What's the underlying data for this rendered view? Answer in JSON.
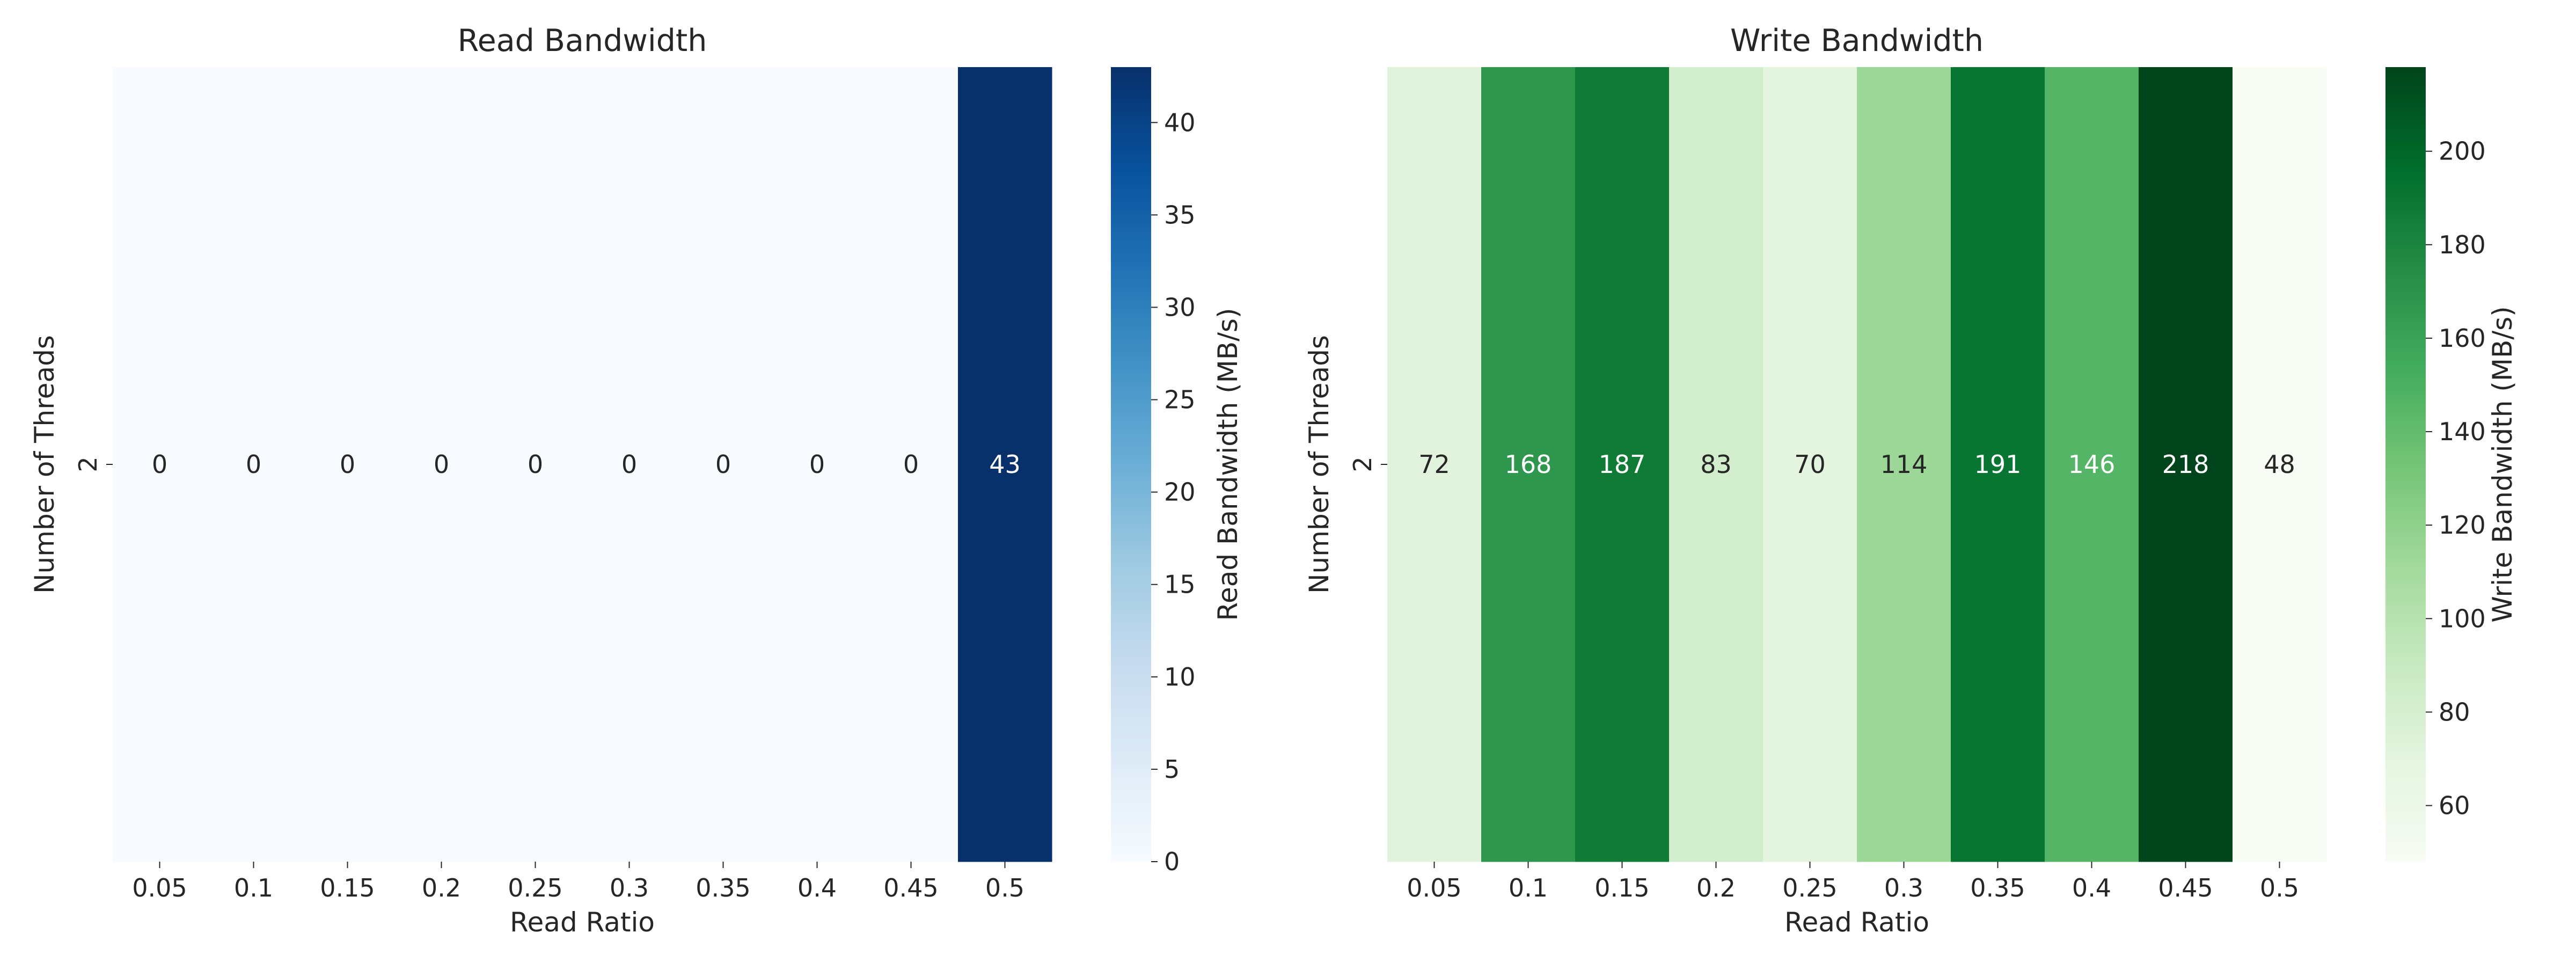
{
  "chart_data": [
    {
      "type": "heatmap",
      "title": "Read Bandwidth",
      "xlabel": "Read Ratio",
      "ylabel": "Number of Threads",
      "x_categories": [
        "0.05",
        "0.1",
        "0.15",
        "0.2",
        "0.25",
        "0.3",
        "0.35",
        "0.4",
        "0.45",
        "0.5"
      ],
      "y_categories": [
        "2"
      ],
      "values": [
        [
          0,
          0,
          0,
          0,
          0,
          0,
          0,
          0,
          0,
          43
        ]
      ],
      "colormap": "Blues",
      "colorbar_label": "Read Bandwidth (MB/s)",
      "colorbar_range": [
        0,
        43
      ],
      "colorbar_ticks": [
        0,
        5,
        10,
        15,
        20,
        25,
        30,
        35,
        40
      ],
      "annotations": true
    },
    {
      "type": "heatmap",
      "title": "Write Bandwidth",
      "xlabel": "Read Ratio",
      "ylabel": "Number of Threads",
      "x_categories": [
        "0.05",
        "0.1",
        "0.15",
        "0.2",
        "0.25",
        "0.3",
        "0.35",
        "0.4",
        "0.45",
        "0.5"
      ],
      "y_categories": [
        "2"
      ],
      "values": [
        [
          72,
          168,
          187,
          83,
          70,
          114,
          191,
          146,
          218,
          48
        ]
      ],
      "colormap": "Greens",
      "colorbar_label": "Write Bandwidth (MB/s)",
      "colorbar_range": [
        48,
        218
      ],
      "colorbar_ticks": [
        60,
        80,
        100,
        120,
        140,
        160,
        180,
        200
      ],
      "annotations": true
    }
  ]
}
